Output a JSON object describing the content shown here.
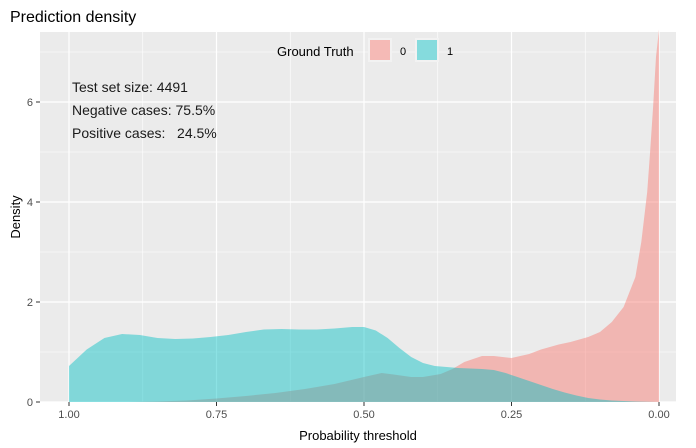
{
  "chart_data": {
    "type": "area",
    "title": "Prediction density",
    "xlabel": "Probability threshold",
    "ylabel": "Density",
    "x_reversed": true,
    "xlim": [
      1.0,
      0.0
    ],
    "ylim": [
      0,
      7.4
    ],
    "x_ticks": [
      1.0,
      0.75,
      0.5,
      0.25,
      0.0
    ],
    "x_tick_labels": [
      "1.00",
      "0.75",
      "0.50",
      "0.25",
      "0.00"
    ],
    "y_ticks": [
      0,
      2,
      4,
      6
    ],
    "y_tick_labels": [
      "0",
      "2",
      "4",
      "6"
    ],
    "grid": true,
    "legend": {
      "title": "Ground Truth",
      "position": "top",
      "entries": [
        {
          "label": "0",
          "color": "#F8766D"
        },
        {
          "label": "1",
          "color": "#00BFC4"
        }
      ]
    },
    "annotations": [
      "Test set size: 4491",
      "Negative cases: 75.5%",
      "Positive cases:   24.5%"
    ],
    "series": [
      {
        "name": "0",
        "color": "#F8766D",
        "opacity": 0.45,
        "x": [
          1.0,
          0.95,
          0.9,
          0.85,
          0.8,
          0.75,
          0.7,
          0.65,
          0.6,
          0.55,
          0.5,
          0.47,
          0.45,
          0.42,
          0.4,
          0.37,
          0.35,
          0.33,
          0.3,
          0.28,
          0.25,
          0.22,
          0.2,
          0.17,
          0.15,
          0.12,
          0.1,
          0.08,
          0.06,
          0.04,
          0.03,
          0.02,
          0.015,
          0.01,
          0.005,
          0.0
        ],
        "y": [
          0.0,
          0.0,
          0.0,
          0.01,
          0.03,
          0.07,
          0.12,
          0.18,
          0.26,
          0.36,
          0.5,
          0.58,
          0.55,
          0.5,
          0.5,
          0.56,
          0.66,
          0.8,
          0.92,
          0.92,
          0.88,
          0.96,
          1.05,
          1.15,
          1.2,
          1.3,
          1.4,
          1.6,
          1.9,
          2.5,
          3.2,
          4.2,
          5.0,
          5.9,
          6.9,
          7.45
        ]
      },
      {
        "name": "1",
        "color": "#00BFC4",
        "opacity": 0.45,
        "x": [
          1.0,
          0.97,
          0.94,
          0.91,
          0.88,
          0.85,
          0.82,
          0.79,
          0.76,
          0.73,
          0.7,
          0.67,
          0.64,
          0.61,
          0.58,
          0.55,
          0.52,
          0.5,
          0.48,
          0.46,
          0.44,
          0.42,
          0.4,
          0.38,
          0.36,
          0.34,
          0.32,
          0.3,
          0.28,
          0.26,
          0.24,
          0.22,
          0.2,
          0.18,
          0.16,
          0.14,
          0.12,
          0.1,
          0.08,
          0.06,
          0.04,
          0.02,
          0.0
        ],
        "y": [
          0.72,
          1.05,
          1.28,
          1.36,
          1.34,
          1.28,
          1.26,
          1.27,
          1.3,
          1.34,
          1.4,
          1.45,
          1.46,
          1.45,
          1.45,
          1.47,
          1.5,
          1.5,
          1.43,
          1.28,
          1.08,
          0.9,
          0.78,
          0.72,
          0.7,
          0.68,
          0.67,
          0.66,
          0.64,
          0.58,
          0.5,
          0.42,
          0.34,
          0.26,
          0.19,
          0.13,
          0.08,
          0.05,
          0.03,
          0.02,
          0.01,
          0.005,
          0.0
        ]
      }
    ]
  }
}
